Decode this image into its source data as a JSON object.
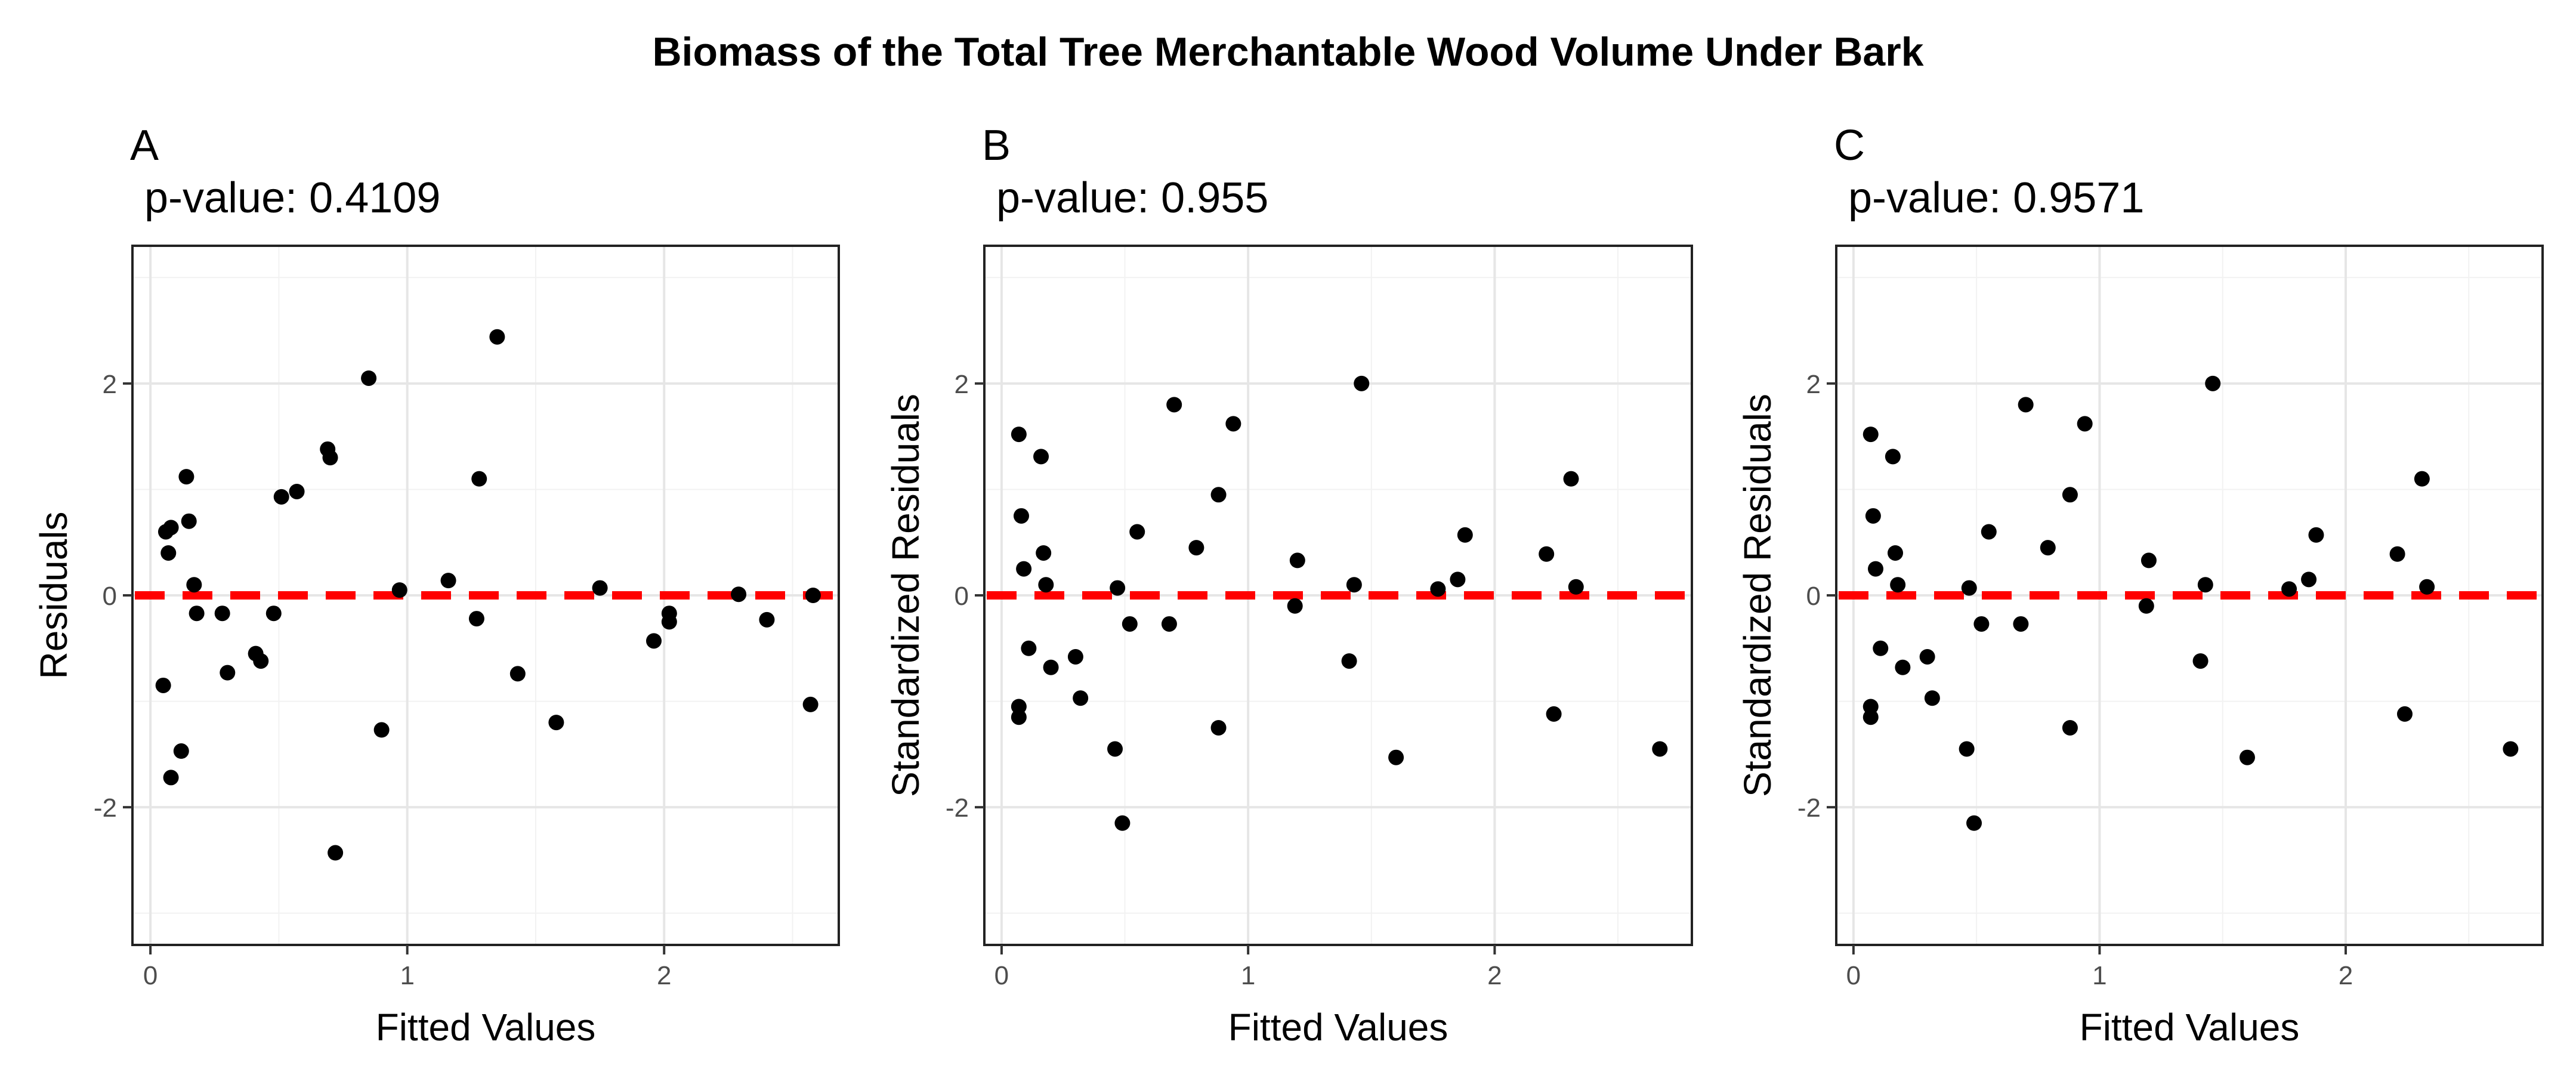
{
  "figure": {
    "title": "Biomass of the Total Tree Merchantable Wood Volume Under Bark",
    "colors": {
      "points": "#000000",
      "reference_line": "#ff0000",
      "grid": "#e6e6e6",
      "background": "#ffffff"
    }
  },
  "chart_data": [
    {
      "type": "scatter",
      "tag": "A",
      "subtitle": "p-value: 0.4109",
      "title": "",
      "xlabel": "Fitted Values",
      "ylabel": "Residuals",
      "xlim": [
        -0.07,
        2.68
      ],
      "ylim": [
        -3.3,
        3.3
      ],
      "xticks": [
        0,
        1,
        2
      ],
      "yticks": [
        -2,
        0,
        2
      ],
      "grid": true,
      "legend": "none",
      "reference_line": {
        "y": 0,
        "style": "dashed",
        "color": "#ff0000"
      },
      "points": [
        {
          "x": 0.05,
          "y": -0.85
        },
        {
          "x": 0.06,
          "y": 0.6
        },
        {
          "x": 0.07,
          "y": 0.4
        },
        {
          "x": 0.08,
          "y": 0.64
        },
        {
          "x": 0.08,
          "y": -1.72
        },
        {
          "x": 0.12,
          "y": -1.47
        },
        {
          "x": 0.14,
          "y": 1.12
        },
        {
          "x": 0.15,
          "y": 0.7
        },
        {
          "x": 0.17,
          "y": 0.1
        },
        {
          "x": 0.18,
          "y": -0.17
        },
        {
          "x": 0.28,
          "y": -0.17
        },
        {
          "x": 0.3,
          "y": -0.73
        },
        {
          "x": 0.41,
          "y": -0.55
        },
        {
          "x": 0.43,
          "y": -0.62
        },
        {
          "x": 0.48,
          "y": -0.17
        },
        {
          "x": 0.51,
          "y": 0.93
        },
        {
          "x": 0.57,
          "y": 0.98
        },
        {
          "x": 0.69,
          "y": 1.38
        },
        {
          "x": 0.7,
          "y": 1.3
        },
        {
          "x": 0.72,
          "y": -2.43
        },
        {
          "x": 0.85,
          "y": 2.05
        },
        {
          "x": 0.9,
          "y": -1.27
        },
        {
          "x": 0.97,
          "y": 0.05
        },
        {
          "x": 1.16,
          "y": 0.14
        },
        {
          "x": 1.27,
          "y": -0.22
        },
        {
          "x": 1.28,
          "y": 1.1
        },
        {
          "x": 1.35,
          "y": 2.44
        },
        {
          "x": 1.43,
          "y": -0.74
        },
        {
          "x": 1.58,
          "y": -1.2
        },
        {
          "x": 1.75,
          "y": 0.07
        },
        {
          "x": 1.96,
          "y": -0.43
        },
        {
          "x": 2.02,
          "y": -0.17
        },
        {
          "x": 2.02,
          "y": -0.25
        },
        {
          "x": 2.29,
          "y": 0.01
        },
        {
          "x": 2.4,
          "y": -0.23
        },
        {
          "x": 2.57,
          "y": -1.03
        },
        {
          "x": 2.58,
          "y": 0.0
        }
      ]
    },
    {
      "type": "scatter",
      "tag": "B",
      "subtitle": "p-value: 0.955",
      "title": "",
      "xlabel": "Fitted Values",
      "ylabel": "Standardized Residuals",
      "xlim": [
        -0.07,
        2.8
      ],
      "ylim": [
        -3.3,
        3.3
      ],
      "xticks": [
        0,
        1,
        2
      ],
      "yticks": [
        -2,
        0,
        2
      ],
      "grid": true,
      "legend": "none",
      "reference_line": {
        "y": 0,
        "style": "dashed",
        "color": "#ff0000"
      },
      "points": [
        {
          "x": 0.07,
          "y": 1.52
        },
        {
          "x": 0.08,
          "y": 0.75
        },
        {
          "x": 0.07,
          "y": -1.05
        },
        {
          "x": 0.07,
          "y": -1.15
        },
        {
          "x": 0.09,
          "y": 0.25
        },
        {
          "x": 0.11,
          "y": -0.5
        },
        {
          "x": 0.16,
          "y": 1.31
        },
        {
          "x": 0.17,
          "y": 0.4
        },
        {
          "x": 0.18,
          "y": 0.1
        },
        {
          "x": 0.2,
          "y": -0.68
        },
        {
          "x": 0.3,
          "y": -0.58
        },
        {
          "x": 0.32,
          "y": -0.97
        },
        {
          "x": 0.46,
          "y": -1.45
        },
        {
          "x": 0.47,
          "y": 0.07
        },
        {
          "x": 0.49,
          "y": -2.15
        },
        {
          "x": 0.52,
          "y": -0.27
        },
        {
          "x": 0.55,
          "y": 0.6
        },
        {
          "x": 0.68,
          "y": -0.27
        },
        {
          "x": 0.7,
          "y": 1.8
        },
        {
          "x": 0.79,
          "y": 0.45
        },
        {
          "x": 0.88,
          "y": 0.95
        },
        {
          "x": 0.88,
          "y": -1.25
        },
        {
          "x": 0.94,
          "y": 1.62
        },
        {
          "x": 1.19,
          "y": -0.1
        },
        {
          "x": 1.2,
          "y": 0.33
        },
        {
          "x": 1.41,
          "y": -0.62
        },
        {
          "x": 1.43,
          "y": 0.1
        },
        {
          "x": 1.46,
          "y": 2.0
        },
        {
          "x": 1.6,
          "y": -1.53
        },
        {
          "x": 1.77,
          "y": 0.06
        },
        {
          "x": 1.85,
          "y": 0.15
        },
        {
          "x": 1.88,
          "y": 0.57
        },
        {
          "x": 2.21,
          "y": 0.39
        },
        {
          "x": 2.24,
          "y": -1.12
        },
        {
          "x": 2.31,
          "y": 1.1
        },
        {
          "x": 2.33,
          "y": 0.08
        },
        {
          "x": 2.67,
          "y": -1.45
        }
      ]
    },
    {
      "type": "scatter",
      "tag": "C",
      "subtitle": "p-value: 0.9571",
      "title": "",
      "xlabel": "Fitted Values",
      "ylabel": "Standardized Residuals",
      "xlim": [
        -0.07,
        2.8
      ],
      "ylim": [
        -3.3,
        3.3
      ],
      "xticks": [
        0,
        1,
        2
      ],
      "yticks": [
        -2,
        0,
        2
      ],
      "grid": true,
      "legend": "none",
      "reference_line": {
        "y": 0,
        "style": "dashed",
        "color": "#ff0000"
      },
      "points": [
        {
          "x": 0.07,
          "y": 1.52
        },
        {
          "x": 0.08,
          "y": 0.75
        },
        {
          "x": 0.07,
          "y": -1.05
        },
        {
          "x": 0.07,
          "y": -1.15
        },
        {
          "x": 0.09,
          "y": 0.25
        },
        {
          "x": 0.11,
          "y": -0.5
        },
        {
          "x": 0.16,
          "y": 1.31
        },
        {
          "x": 0.17,
          "y": 0.4
        },
        {
          "x": 0.18,
          "y": 0.1
        },
        {
          "x": 0.2,
          "y": -0.68
        },
        {
          "x": 0.3,
          "y": -0.58
        },
        {
          "x": 0.32,
          "y": -0.97
        },
        {
          "x": 0.46,
          "y": -1.45
        },
        {
          "x": 0.47,
          "y": 0.07
        },
        {
          "x": 0.49,
          "y": -2.15
        },
        {
          "x": 0.52,
          "y": -0.27
        },
        {
          "x": 0.55,
          "y": 0.6
        },
        {
          "x": 0.68,
          "y": -0.27
        },
        {
          "x": 0.7,
          "y": 1.8
        },
        {
          "x": 0.79,
          "y": 0.45
        },
        {
          "x": 0.88,
          "y": 0.95
        },
        {
          "x": 0.88,
          "y": -1.25
        },
        {
          "x": 0.94,
          "y": 1.62
        },
        {
          "x": 1.19,
          "y": -0.1
        },
        {
          "x": 1.2,
          "y": 0.33
        },
        {
          "x": 1.41,
          "y": -0.62
        },
        {
          "x": 1.43,
          "y": 0.1
        },
        {
          "x": 1.46,
          "y": 2.0
        },
        {
          "x": 1.6,
          "y": -1.53
        },
        {
          "x": 1.77,
          "y": 0.06
        },
        {
          "x": 1.85,
          "y": 0.15
        },
        {
          "x": 1.88,
          "y": 0.57
        },
        {
          "x": 2.21,
          "y": 0.39
        },
        {
          "x": 2.24,
          "y": -1.12
        },
        {
          "x": 2.31,
          "y": 1.1
        },
        {
          "x": 2.33,
          "y": 0.08
        },
        {
          "x": 2.67,
          "y": -1.45
        }
      ]
    }
  ]
}
